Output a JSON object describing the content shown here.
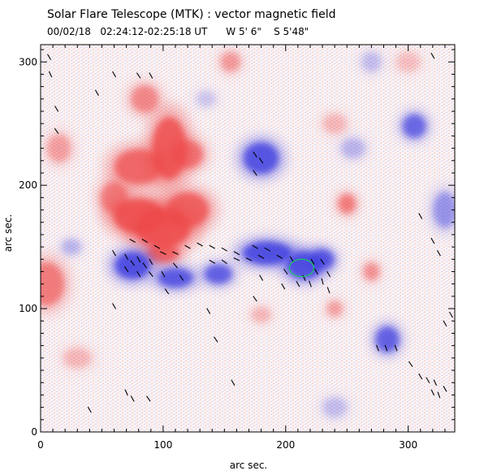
{
  "chart_data": {
    "type": "heatmap",
    "title": "Solar Flare Telescope (MTK) : vector magnetic field",
    "subtitle": "00/02/18   02:24:12-02:25:18 UT      W 5' 6\"    S 5'48\"",
    "xlabel": "arc sec.",
    "ylabel": "arc sec.",
    "xlim": [
      0,
      338
    ],
    "ylim": [
      0,
      314
    ],
    "xticks": [
      0,
      100,
      200,
      300
    ],
    "yticks": [
      0,
      100,
      200,
      300
    ],
    "xtick_labels": [
      "0",
      "100",
      "200",
      "300"
    ],
    "ytick_labels": [
      "0",
      "100",
      "200",
      "300"
    ],
    "colors": {
      "positive": "#ee4a4a",
      "negative": "#3f3fe0",
      "vectors": "#000000",
      "contour": "#1fbf6a"
    },
    "positive_regions": [
      {
        "x": 80,
        "y": 175,
        "rx": 26,
        "ry": 18,
        "strength": 1.0
      },
      {
        "x": 100,
        "y": 165,
        "rx": 28,
        "ry": 20,
        "strength": 1.0
      },
      {
        "x": 105,
        "y": 230,
        "rx": 18,
        "ry": 32,
        "strength": 0.95
      },
      {
        "x": 120,
        "y": 180,
        "rx": 22,
        "ry": 18,
        "strength": 0.9
      },
      {
        "x": 80,
        "y": 215,
        "rx": 25,
        "ry": 18,
        "strength": 0.85
      },
      {
        "x": 85,
        "y": 270,
        "rx": 14,
        "ry": 14,
        "strength": 0.6
      },
      {
        "x": 120,
        "y": 225,
        "rx": 16,
        "ry": 14,
        "strength": 0.75
      },
      {
        "x": 60,
        "y": 190,
        "rx": 14,
        "ry": 16,
        "strength": 0.7
      },
      {
        "x": 100,
        "y": 145,
        "rx": 16,
        "ry": 10,
        "strength": 0.85
      },
      {
        "x": 155,
        "y": 300,
        "rx": 10,
        "ry": 10,
        "strength": 0.5
      },
      {
        "x": 5,
        "y": 120,
        "rx": 18,
        "ry": 22,
        "strength": 0.7
      },
      {
        "x": 15,
        "y": 230,
        "rx": 12,
        "ry": 14,
        "strength": 0.45
      },
      {
        "x": 250,
        "y": 185,
        "rx": 9,
        "ry": 10,
        "strength": 0.7
      },
      {
        "x": 270,
        "y": 130,
        "rx": 8,
        "ry": 9,
        "strength": 0.55
      },
      {
        "x": 240,
        "y": 100,
        "rx": 8,
        "ry": 8,
        "strength": 0.45
      },
      {
        "x": 30,
        "y": 60,
        "rx": 14,
        "ry": 10,
        "strength": 0.3
      },
      {
        "x": 240,
        "y": 250,
        "rx": 12,
        "ry": 10,
        "strength": 0.3
      },
      {
        "x": 300,
        "y": 300,
        "rx": 12,
        "ry": 10,
        "strength": 0.25
      },
      {
        "x": 180,
        "y": 95,
        "rx": 10,
        "ry": 8,
        "strength": 0.3
      }
    ],
    "negative_regions": [
      {
        "x": 75,
        "y": 135,
        "rx": 18,
        "ry": 14,
        "strength": 1.0
      },
      {
        "x": 110,
        "y": 125,
        "rx": 18,
        "ry": 10,
        "strength": 0.9
      },
      {
        "x": 145,
        "y": 128,
        "rx": 14,
        "ry": 10,
        "strength": 0.85
      },
      {
        "x": 185,
        "y": 145,
        "rx": 25,
        "ry": 12,
        "strength": 1.0
      },
      {
        "x": 215,
        "y": 135,
        "rx": 18,
        "ry": 14,
        "strength": 1.0
      },
      {
        "x": 230,
        "y": 140,
        "rx": 12,
        "ry": 10,
        "strength": 0.9
      },
      {
        "x": 180,
        "y": 222,
        "rx": 18,
        "ry": 16,
        "strength": 0.95
      },
      {
        "x": 305,
        "y": 248,
        "rx": 12,
        "ry": 12,
        "strength": 0.8
      },
      {
        "x": 330,
        "y": 180,
        "rx": 12,
        "ry": 18,
        "strength": 0.5
      },
      {
        "x": 283,
        "y": 75,
        "rx": 12,
        "ry": 13,
        "strength": 0.85
      },
      {
        "x": 270,
        "y": 300,
        "rx": 10,
        "ry": 10,
        "strength": 0.25
      },
      {
        "x": 25,
        "y": 150,
        "rx": 10,
        "ry": 8,
        "strength": 0.3
      },
      {
        "x": 240,
        "y": 20,
        "rx": 12,
        "ry": 10,
        "strength": 0.25
      },
      {
        "x": 255,
        "y": 230,
        "rx": 12,
        "ry": 10,
        "strength": 0.3
      },
      {
        "x": 135,
        "y": 270,
        "rx": 10,
        "ry": 8,
        "strength": 0.2
      }
    ],
    "vectors": [
      {
        "x": 7,
        "y": 304,
        "angle": 60
      },
      {
        "x": 8,
        "y": 290,
        "angle": 65
      },
      {
        "x": 60,
        "y": 290,
        "angle": 60
      },
      {
        "x": 80,
        "y": 289,
        "angle": 55
      },
      {
        "x": 90,
        "y": 289,
        "angle": 60
      },
      {
        "x": 46,
        "y": 275,
        "angle": 60
      },
      {
        "x": 13,
        "y": 262,
        "angle": 60
      },
      {
        "x": 13,
        "y": 244,
        "angle": 55
      },
      {
        "x": 175,
        "y": 225,
        "angle": 55
      },
      {
        "x": 180,
        "y": 220,
        "angle": 55
      },
      {
        "x": 175,
        "y": 210,
        "angle": 55
      },
      {
        "x": 60,
        "y": 145,
        "angle": 60
      },
      {
        "x": 70,
        "y": 142,
        "angle": 60
      },
      {
        "x": 75,
        "y": 137,
        "angle": 55
      },
      {
        "x": 80,
        "y": 140,
        "angle": 60
      },
      {
        "x": 85,
        "y": 135,
        "angle": 55
      },
      {
        "x": 90,
        "y": 138,
        "angle": 60
      },
      {
        "x": 70,
        "y": 132,
        "angle": 55
      },
      {
        "x": 80,
        "y": 128,
        "angle": 60
      },
      {
        "x": 90,
        "y": 128,
        "angle": 50
      },
      {
        "x": 75,
        "y": 155,
        "angle": 30
      },
      {
        "x": 85,
        "y": 155,
        "angle": 30
      },
      {
        "x": 95,
        "y": 150,
        "angle": 30
      },
      {
        "x": 100,
        "y": 145,
        "angle": 25
      },
      {
        "x": 110,
        "y": 145,
        "angle": 25
      },
      {
        "x": 120,
        "y": 150,
        "angle": 30
      },
      {
        "x": 130,
        "y": 152,
        "angle": 30
      },
      {
        "x": 140,
        "y": 150,
        "angle": 30
      },
      {
        "x": 150,
        "y": 148,
        "angle": 30
      },
      {
        "x": 160,
        "y": 145,
        "angle": 30
      },
      {
        "x": 110,
        "y": 135,
        "angle": 50
      },
      {
        "x": 100,
        "y": 128,
        "angle": 60
      },
      {
        "x": 115,
        "y": 125,
        "angle": 55
      },
      {
        "x": 140,
        "y": 138,
        "angle": 30
      },
      {
        "x": 150,
        "y": 138,
        "angle": 35
      },
      {
        "x": 160,
        "y": 140,
        "angle": 25
      },
      {
        "x": 175,
        "y": 150,
        "angle": 30
      },
      {
        "x": 185,
        "y": 148,
        "angle": 30
      },
      {
        "x": 195,
        "y": 142,
        "angle": 30
      },
      {
        "x": 180,
        "y": 142,
        "angle": 30
      },
      {
        "x": 170,
        "y": 140,
        "angle": 25
      },
      {
        "x": 200,
        "y": 130,
        "angle": 55
      },
      {
        "x": 205,
        "y": 140,
        "angle": 60
      },
      {
        "x": 215,
        "y": 125,
        "angle": 65
      },
      {
        "x": 210,
        "y": 120,
        "angle": 60
      },
      {
        "x": 220,
        "y": 120,
        "angle": 70
      },
      {
        "x": 225,
        "y": 130,
        "angle": 60
      },
      {
        "x": 230,
        "y": 138,
        "angle": 55
      },
      {
        "x": 235,
        "y": 128,
        "angle": 60
      },
      {
        "x": 222,
        "y": 138,
        "angle": 60
      },
      {
        "x": 235,
        "y": 115,
        "angle": 70
      },
      {
        "x": 198,
        "y": 118,
        "angle": 60
      },
      {
        "x": 230,
        "y": 122,
        "angle": 75
      },
      {
        "x": 180,
        "y": 125,
        "angle": 60
      },
      {
        "x": 60,
        "y": 102,
        "angle": 60
      },
      {
        "x": 103,
        "y": 114,
        "angle": 55
      },
      {
        "x": 175,
        "y": 108,
        "angle": 55
      },
      {
        "x": 137,
        "y": 98,
        "angle": 60
      },
      {
        "x": 143,
        "y": 75,
        "angle": 55
      },
      {
        "x": 157,
        "y": 40,
        "angle": 60
      },
      {
        "x": 275,
        "y": 68,
        "angle": 70
      },
      {
        "x": 282,
        "y": 68,
        "angle": 70
      },
      {
        "x": 290,
        "y": 68,
        "angle": 70
      },
      {
        "x": 302,
        "y": 55,
        "angle": 55
      },
      {
        "x": 310,
        "y": 45,
        "angle": 60
      },
      {
        "x": 320,
        "y": 32,
        "angle": 65
      },
      {
        "x": 330,
        "y": 35,
        "angle": 60
      },
      {
        "x": 325,
        "y": 30,
        "angle": 70
      },
      {
        "x": 322,
        "y": 40,
        "angle": 65
      },
      {
        "x": 316,
        "y": 42,
        "angle": 60
      },
      {
        "x": 335,
        "y": 95,
        "angle": 60
      },
      {
        "x": 330,
        "y": 88,
        "angle": 60
      },
      {
        "x": 310,
        "y": 175,
        "angle": 60
      },
      {
        "x": 320,
        "y": 155,
        "angle": 60
      },
      {
        "x": 325,
        "y": 145,
        "angle": 60
      },
      {
        "x": 75,
        "y": 27,
        "angle": 60
      },
      {
        "x": 88,
        "y": 27,
        "angle": 55
      },
      {
        "x": 70,
        "y": 32,
        "angle": 65
      },
      {
        "x": 40,
        "y": 18,
        "angle": 60
      },
      {
        "x": 320,
        "y": 305,
        "angle": 60
      }
    ],
    "contour": {
      "x": 213,
      "y": 133,
      "rx": 10,
      "ry": 7
    }
  }
}
